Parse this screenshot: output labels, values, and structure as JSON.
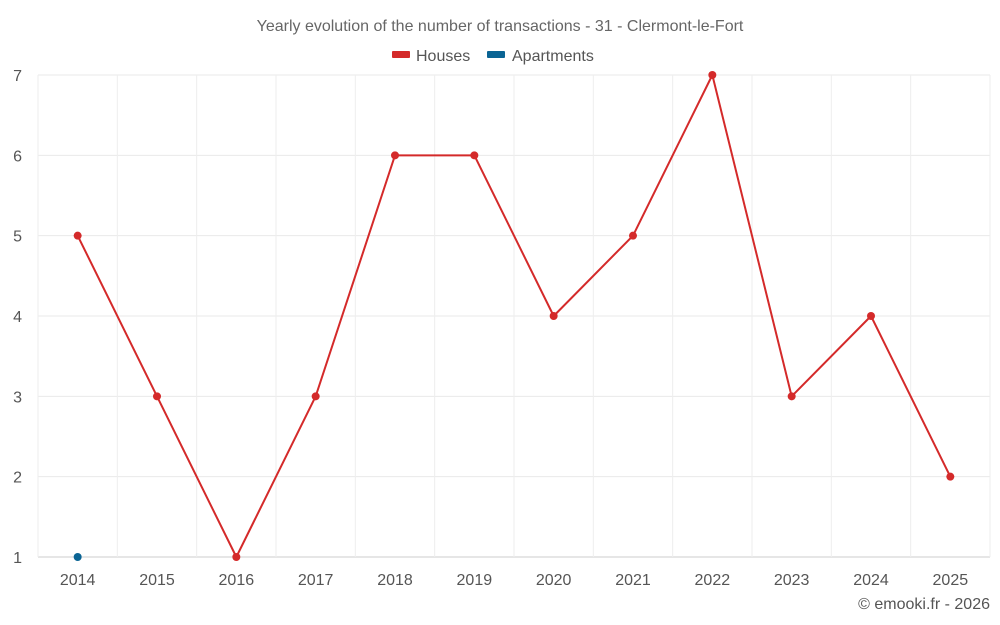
{
  "chart_data": {
    "type": "line",
    "title": "Yearly evolution of the number of transactions - 31 - Clermont-le-Fort",
    "categories": [
      "2014",
      "2015",
      "2016",
      "2017",
      "2018",
      "2019",
      "2020",
      "2021",
      "2022",
      "2023",
      "2024",
      "2025"
    ],
    "series": [
      {
        "name": "Houses",
        "color": "#d42a2a",
        "values": [
          5,
          3,
          1,
          3,
          6,
          6,
          4,
          5,
          7,
          3,
          4,
          2
        ]
      },
      {
        "name": "Apartments",
        "color": "#0a6494",
        "values": [
          1,
          null,
          null,
          null,
          null,
          null,
          null,
          null,
          null,
          null,
          null,
          null
        ]
      }
    ],
    "yticks": [
      "1",
      "2",
      "3",
      "4",
      "5",
      "6",
      "7"
    ],
    "ylim": [
      1,
      7
    ],
    "grid": true,
    "legend_position": "top-center",
    "xlabel": "",
    "ylabel": ""
  },
  "credit": "© emooki.fr - 2026"
}
